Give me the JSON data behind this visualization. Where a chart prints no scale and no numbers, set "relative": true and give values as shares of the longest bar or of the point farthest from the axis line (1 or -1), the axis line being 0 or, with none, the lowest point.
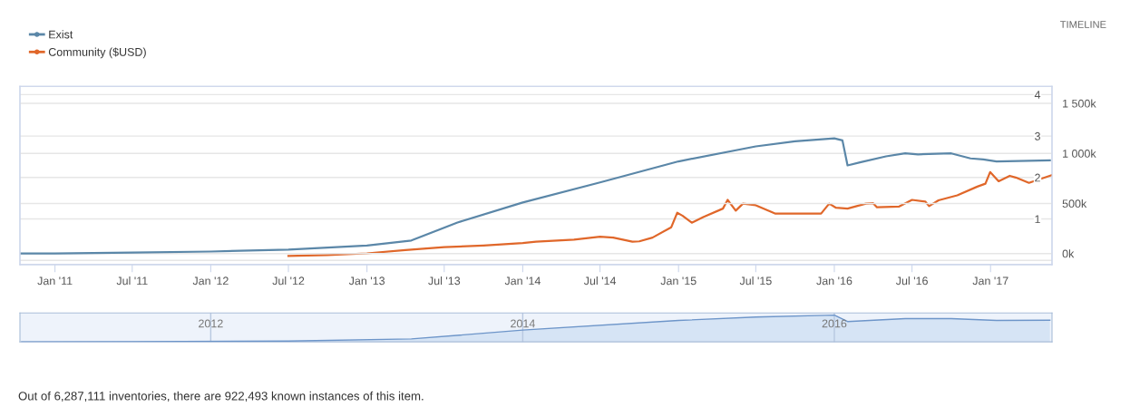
{
  "chart_data": [
    {
      "type": "line",
      "legend": "top left",
      "grid": "y",
      "annotations": [
        "TIMELINE",
        "Out of 6,287,111 inventories, there are 922,493 known instances of this item."
      ],
      "xlim": [
        "2010-10-11",
        "2017-05-25"
      ],
      "xticks": [
        {
          "value": "2011-01-01",
          "label": "Jan '11"
        },
        {
          "value": "2011-07-01",
          "label": "Jul '11"
        },
        {
          "value": "2012-01-01",
          "label": "Jan '12"
        },
        {
          "value": "2012-07-01",
          "label": "Jul '12"
        },
        {
          "value": "2013-01-01",
          "label": "Jan '13"
        },
        {
          "value": "2013-07-01",
          "label": "Jul '13"
        },
        {
          "value": "2014-01-01",
          "label": "Jan '14"
        },
        {
          "value": "2014-07-01",
          "label": "Jul '14"
        },
        {
          "value": "2015-01-01",
          "label": "Jan '15"
        },
        {
          "value": "2015-07-01",
          "label": "Jul '15"
        },
        {
          "value": "2016-01-01",
          "label": "Jan '16"
        },
        {
          "value": "2016-07-01",
          "label": "Jul '16"
        },
        {
          "value": "2017-01-01",
          "label": "Jan '17"
        }
      ],
      "ylim": [
        -0.1,
        4.2
      ],
      "yticks": [
        {
          "value": 0,
          "label": null
        },
        1,
        2,
        3,
        4
      ],
      "y2lim": [
        -110,
        1670
      ],
      "y2ticks": [
        {
          "value": 0,
          "label": "0k"
        },
        {
          "value": 500,
          "label": "500k"
        },
        {
          "value": 1000,
          "label": "1 000k"
        },
        {
          "value": 1500,
          "label": "1 500k"
        }
      ],
      "series": [
        {
          "name": "Exist",
          "color": "#5b87a8",
          "axis": "y2",
          "x": [
            "2010-10-15",
            "2011-01-01",
            "2011-07-01",
            "2012-01-01",
            "2012-07-01",
            "2013-01-01",
            "2013-04-15",
            "2013-08-01",
            "2014-01-01",
            "2014-07-01",
            "2015-01-01",
            "2015-07-01",
            "2015-10-01",
            "2016-01-01",
            "2016-01-20",
            "2016-02-01",
            "2016-03-01",
            "2016-05-01",
            "2016-06-15",
            "2016-07-15",
            "2016-10-01",
            "2016-11-15",
            "2016-12-15",
            "2017-01-15",
            "2017-05-20"
          ],
          "values": [
            0,
            0,
            10,
            20,
            40,
            80,
            130,
            310,
            510,
            710,
            920,
            1070,
            1120,
            1150,
            1130,
            880,
            910,
            970,
            1000,
            990,
            1000,
            950,
            940,
            920,
            930
          ]
        },
        {
          "name": "Community ($USD)",
          "color": "#e0672a",
          "axis": "y",
          "x": [
            "2012-07-01",
            "2012-10-01",
            "2013-01-01",
            "2013-04-01",
            "2013-07-01",
            "2013-10-01",
            "2014-01-01",
            "2014-02-01",
            "2014-05-01",
            "2014-07-01",
            "2014-08-01",
            "2014-09-15",
            "2014-10-01",
            "2014-11-01",
            "2014-12-15",
            "2014-12-29",
            "2015-01-10",
            "2015-02-01",
            "2015-03-01",
            "2015-04-15",
            "2015-04-26",
            "2015-05-15",
            "2015-06-01",
            "2015-07-01",
            "2015-08-15",
            "2015-12-01",
            "2015-12-20",
            "2016-01-05",
            "2016-02-01",
            "2016-03-15",
            "2016-04-01",
            "2016-04-10",
            "2016-06-01",
            "2016-07-01",
            "2016-08-01",
            "2016-08-10",
            "2016-09-01",
            "2016-10-15",
            "2016-12-01",
            "2016-12-20",
            "2016-12-31",
            "2017-01-20",
            "2017-02-15",
            "2017-03-01",
            "2017-04-01",
            "2017-05-25"
          ],
          "values": [
            0.11,
            0.13,
            0.17,
            0.25,
            0.32,
            0.36,
            0.42,
            0.45,
            0.5,
            0.57,
            0.55,
            0.45,
            0.46,
            0.55,
            0.8,
            1.15,
            1.08,
            0.91,
            1.05,
            1.25,
            1.46,
            1.2,
            1.37,
            1.33,
            1.13,
            1.13,
            1.37,
            1.27,
            1.25,
            1.37,
            1.38,
            1.28,
            1.3,
            1.46,
            1.42,
            1.31,
            1.45,
            1.57,
            1.78,
            1.85,
            2.13,
            1.91,
            2.04,
            2.0,
            1.87,
            2.06
          ]
        }
      ]
    },
    {
      "type": "area",
      "relative": true,
      "grid": "x",
      "xlim": [
        "2010-10-11",
        "2017-05-25"
      ],
      "xticks": [
        {
          "value": "2012-01-01",
          "label": "2012"
        },
        {
          "value": "2014-01-01",
          "label": "2014"
        },
        {
          "value": "2016-01-01",
          "label": "2016"
        }
      ],
      "series": [
        {
          "color": "#6d95c9",
          "x": [
            "2010-10-15",
            "2011-07-01",
            "2012-07-01",
            "2013-04-15",
            "2014-01-01",
            "2015-01-01",
            "2015-07-01",
            "2016-01-01",
            "2016-02-01",
            "2016-06-15",
            "2016-10-01",
            "2017-01-15",
            "2017-05-20"
          ],
          "values": [
            0.0,
            0.01,
            0.03,
            0.11,
            0.44,
            0.8,
            0.93,
            1,
            0.76,
            0.87,
            0.87,
            0.8,
            0.81
          ]
        }
      ]
    }
  ]
}
